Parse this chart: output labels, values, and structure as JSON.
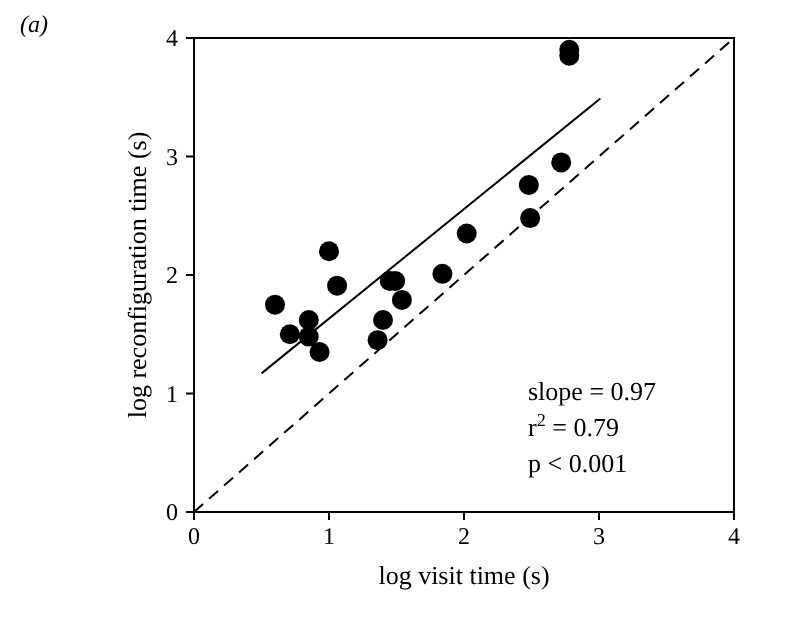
{
  "chart_data": {
    "type": "scatter",
    "title": "(a)",
    "xlabel": "log visit time (s)",
    "ylabel": "log reconfiguration time (s)",
    "xlim": [
      0,
      4
    ],
    "ylim": [
      0,
      4
    ],
    "xticks": [
      0,
      1,
      2,
      3,
      4
    ],
    "yticks": [
      0,
      1,
      2,
      3,
      4
    ],
    "grid": false,
    "marker": "circle",
    "series": [
      {
        "color": "#000000",
        "x": [
          0.6,
          0.71,
          0.85,
          0.85,
          0.93,
          1.0,
          1.06,
          1.36,
          1.4,
          1.45,
          1.49,
          1.54,
          1.84,
          2.02,
          2.48,
          2.49,
          2.72,
          2.78,
          2.78
        ],
        "values": [
          1.75,
          1.5,
          1.62,
          1.48,
          1.35,
          2.2,
          1.91,
          1.45,
          1.62,
          1.95,
          1.95,
          1.79,
          2.01,
          2.35,
          2.76,
          2.48,
          2.95,
          3.9,
          3.85
        ]
      },
      {
        "type": "line",
        "color": "#000000",
        "line_style": "solid",
        "marker": "none",
        "x": [
          0.5,
          3.01
        ],
        "values": [
          1.17,
          3.49
        ]
      },
      {
        "type": "line",
        "color": "#000000",
        "line_style": "dashed",
        "marker": "none",
        "x": [
          0,
          4
        ],
        "values": [
          0,
          4
        ]
      }
    ],
    "annotations": [
      "slope = 0.97",
      "r$^{2}$ = 0.79",
      "p < 0.001"
    ]
  }
}
